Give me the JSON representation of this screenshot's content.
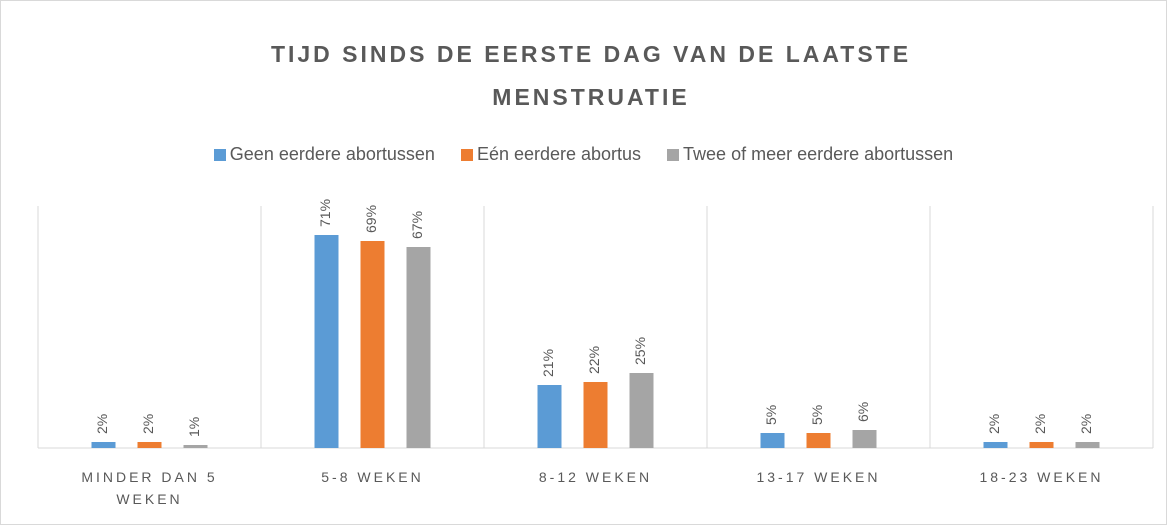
{
  "chart_data": {
    "type": "bar",
    "title": "TIJD SINDS DE EERSTE DAG VAN DE LAATSTE MENSTRUATIE",
    "categories": [
      "MINDER DAN 5 WEKEN",
      "5-8 WEKEN",
      "8-12 WEKEN",
      "13-17 WEKEN",
      "18-23 WEKEN"
    ],
    "series": [
      {
        "name": "Geen eerdere abortussen",
        "color": "#5b9bd5",
        "values": [
          2,
          71,
          21,
          5,
          2
        ],
        "value_labels": [
          "2%",
          "71%",
          "21%",
          "5%",
          "2%"
        ]
      },
      {
        "name": "Eén eerdere abortus",
        "color": "#ed7d31",
        "values": [
          2,
          69,
          22,
          5,
          2
        ],
        "value_labels": [
          "2%",
          "69%",
          "22%",
          "5%",
          "2%"
        ]
      },
      {
        "name": "Twee of meer eerdere abortussen",
        "color": "#a5a5a5",
        "values": [
          1,
          67,
          25,
          6,
          2
        ],
        "value_labels": [
          "1%",
          "67%",
          "25%",
          "6%",
          "2%"
        ]
      }
    ],
    "legend": "top"
  }
}
